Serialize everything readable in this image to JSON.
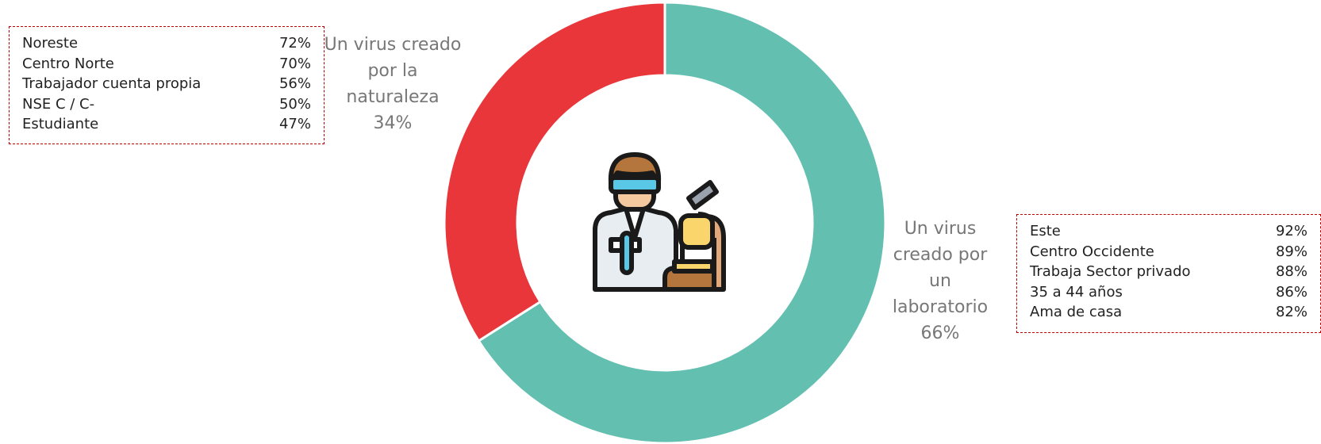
{
  "chart_data": {
    "type": "pie",
    "donut": true,
    "categories": [
      "Un virus creado por un laboratorio",
      "Un virus creado por la naturaleza"
    ],
    "values": [
      66,
      34
    ],
    "value_labels": [
      "66%",
      "34%"
    ],
    "colors": [
      "#63bfb0",
      "#e8363a"
    ]
  },
  "callouts": [
    {
      "rows": [
        [
          "Noreste",
          "72%"
        ],
        [
          "Centro Norte",
          "70%"
        ],
        [
          "Trabajador cuenta propia",
          "56%"
        ],
        [
          "NSE C / C-",
          "50%"
        ],
        [
          "Estudiante",
          "47%"
        ]
      ]
    },
    {
      "rows": [
        [
          "Este",
          "92%"
        ],
        [
          "Centro Occidente",
          "89%"
        ],
        [
          "Trabaja Sector privado",
          "88%"
        ],
        [
          "35 a 44 años",
          "86%"
        ],
        [
          "Ama de casa",
          "82%"
        ]
      ]
    }
  ]
}
